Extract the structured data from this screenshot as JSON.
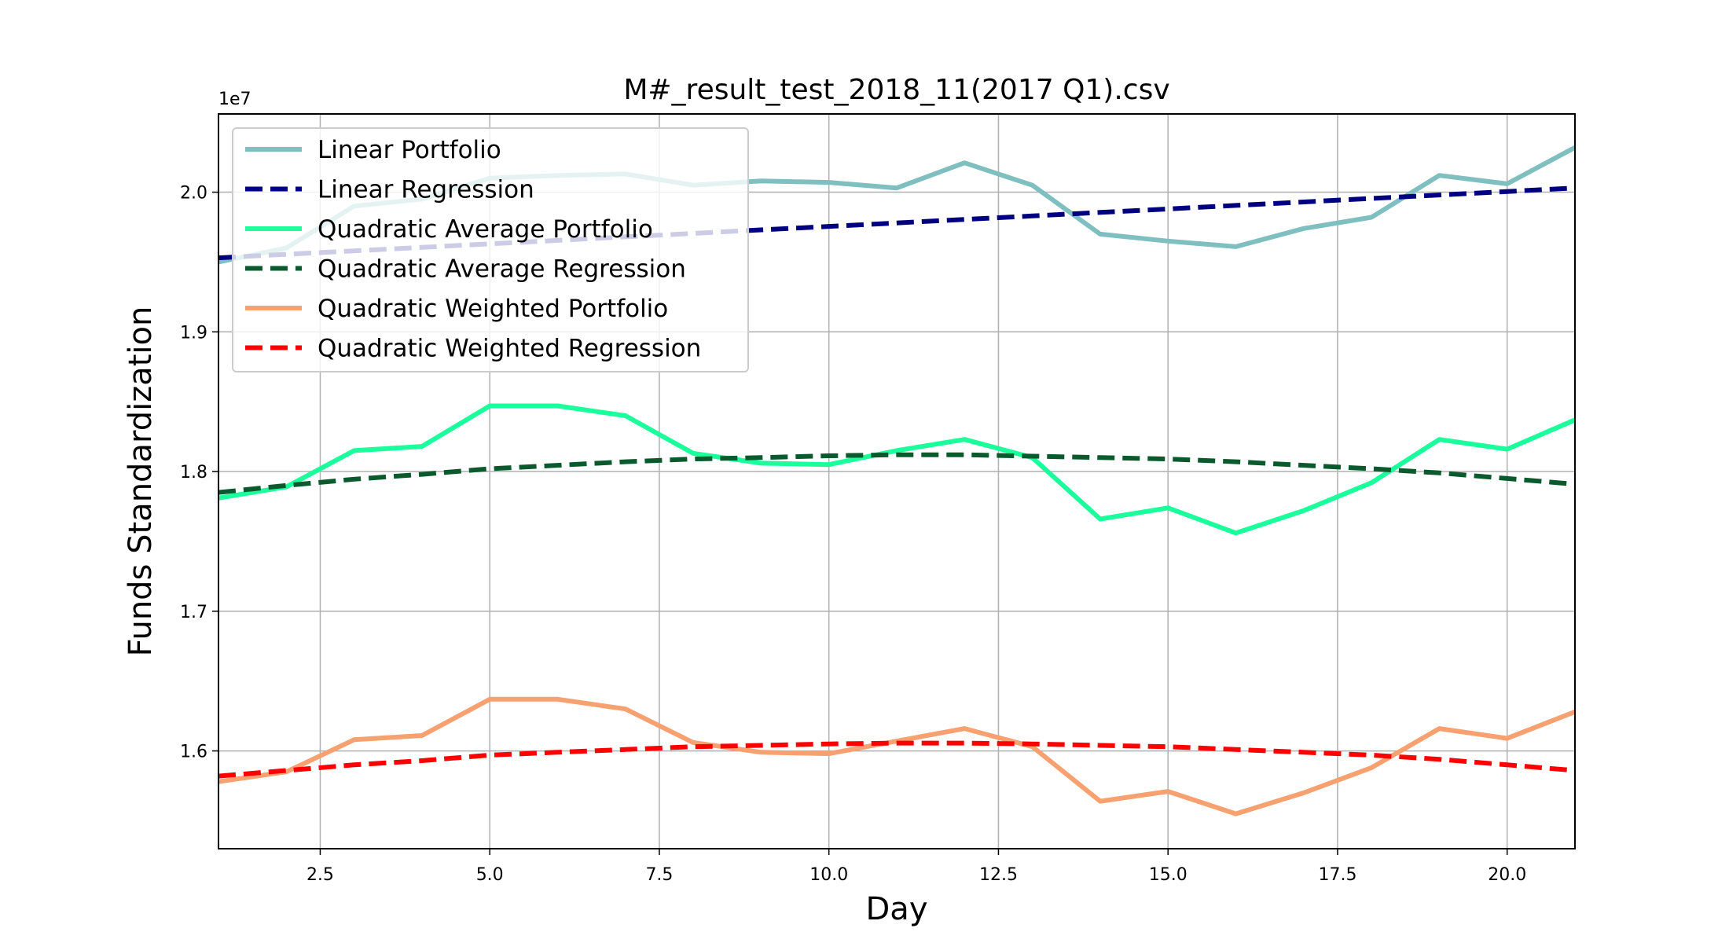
{
  "chart_data": {
    "type": "line",
    "title": "M#_result_test_2018_11(2017 Q1).csv",
    "xlabel": "Day",
    "ylabel": "Funds Standardization",
    "y_offset_label": "1e7",
    "xlim": [
      1,
      21
    ],
    "ylim": [
      1.53,
      2.056
    ],
    "x_ticks": [
      2.5,
      5.0,
      7.5,
      10.0,
      12.5,
      15.0,
      17.5,
      20.0
    ],
    "x_tick_labels": [
      "2.5",
      "5.0",
      "7.5",
      "10.0",
      "12.5",
      "15.0",
      "17.5",
      "20.0"
    ],
    "y_ticks": [
      1.6,
      1.7,
      1.8,
      1.9,
      2.0
    ],
    "y_tick_labels": [
      "1.6",
      "1.7",
      "1.8",
      "1.9",
      "2.0"
    ],
    "grid": true,
    "legend_position": "top-left",
    "x": [
      1,
      2,
      3,
      4,
      5,
      6,
      7,
      8,
      9,
      10,
      11,
      12,
      13,
      14,
      15,
      16,
      17,
      18,
      19,
      20,
      21
    ],
    "series": [
      {
        "name": "Linear Portfolio",
        "color": "#7fbfbf",
        "style": "solid",
        "values": [
          1.95,
          1.96,
          1.99,
          1.995,
          2.01,
          2.012,
          2.013,
          2.005,
          2.008,
          2.007,
          2.003,
          2.021,
          2.005,
          1.97,
          1.965,
          1.961,
          1.974,
          1.982,
          2.012,
          2.006,
          2.032
        ]
      },
      {
        "name": "Linear Regression",
        "color": "#000080",
        "style": "dashed",
        "values": [
          1.953,
          1.9555,
          1.958,
          1.9605,
          1.963,
          1.9655,
          1.968,
          1.9705,
          1.973,
          1.9755,
          1.978,
          1.9805,
          1.983,
          1.9855,
          1.988,
          1.9905,
          1.993,
          1.9955,
          1.998,
          2.0005,
          2.003
        ]
      },
      {
        "name": "Quadratic Average Portfolio",
        "color": "#1aff9c",
        "style": "solid",
        "values": [
          1.781,
          1.789,
          1.815,
          1.818,
          1.847,
          1.847,
          1.84,
          1.813,
          1.806,
          1.805,
          1.815,
          1.823,
          1.81,
          1.766,
          1.774,
          1.756,
          1.772,
          1.792,
          1.823,
          1.816,
          1.837
        ]
      },
      {
        "name": "Quadratic Average Regression",
        "color": "#0b5a2e",
        "style": "dashed",
        "values": [
          1.785,
          1.79,
          1.7945,
          1.798,
          1.802,
          1.8045,
          1.807,
          1.809,
          1.81,
          1.8113,
          1.812,
          1.812,
          1.811,
          1.81,
          1.809,
          1.807,
          1.8045,
          1.802,
          1.799,
          1.795,
          1.791
        ]
      },
      {
        "name": "Quadratic Weighted Portfolio",
        "color": "#f7a070",
        "style": "solid",
        "values": [
          1.578,
          1.585,
          1.608,
          1.611,
          1.637,
          1.637,
          1.63,
          1.606,
          1.599,
          1.598,
          1.607,
          1.616,
          1.603,
          1.564,
          1.571,
          1.555,
          1.57,
          1.588,
          1.616,
          1.609,
          1.628
        ]
      },
      {
        "name": "Quadratic Weighted Regression",
        "color": "#ff0000",
        "style": "dashed",
        "values": [
          1.582,
          1.586,
          1.59,
          1.593,
          1.597,
          1.599,
          1.601,
          1.603,
          1.604,
          1.605,
          1.6056,
          1.6056,
          1.605,
          1.604,
          1.603,
          1.601,
          1.599,
          1.597,
          1.594,
          1.59,
          1.586
        ]
      }
    ]
  }
}
